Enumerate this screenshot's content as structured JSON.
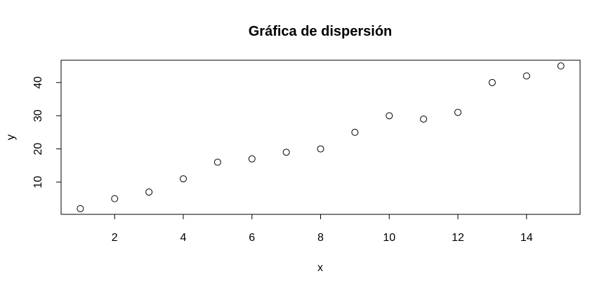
{
  "chart_data": {
    "type": "scatter",
    "title": "Gráfica de dispersión",
    "xlabel": "x",
    "ylabel": "y",
    "x": [
      1,
      2,
      3,
      4,
      5,
      6,
      7,
      8,
      9,
      10,
      11,
      12,
      13,
      14,
      15
    ],
    "y": [
      2,
      5,
      7,
      11,
      16,
      17,
      19,
      20,
      25,
      30,
      29,
      31,
      40,
      42,
      45
    ],
    "xlim": [
      0.44,
      15.56
    ],
    "ylim": [
      0.28,
      46.72
    ],
    "x_ticks": [
      2,
      4,
      6,
      8,
      10,
      12,
      14
    ],
    "y_ticks": [
      10,
      20,
      30,
      40
    ],
    "x_tick_labels": [
      "2",
      "4",
      "6",
      "8",
      "10",
      "12",
      "14"
    ],
    "y_tick_labels": [
      "10",
      "20",
      "30",
      "40"
    ],
    "marker": "open-circle",
    "marker_color": "#000000",
    "grid": false,
    "legend": "none"
  }
}
